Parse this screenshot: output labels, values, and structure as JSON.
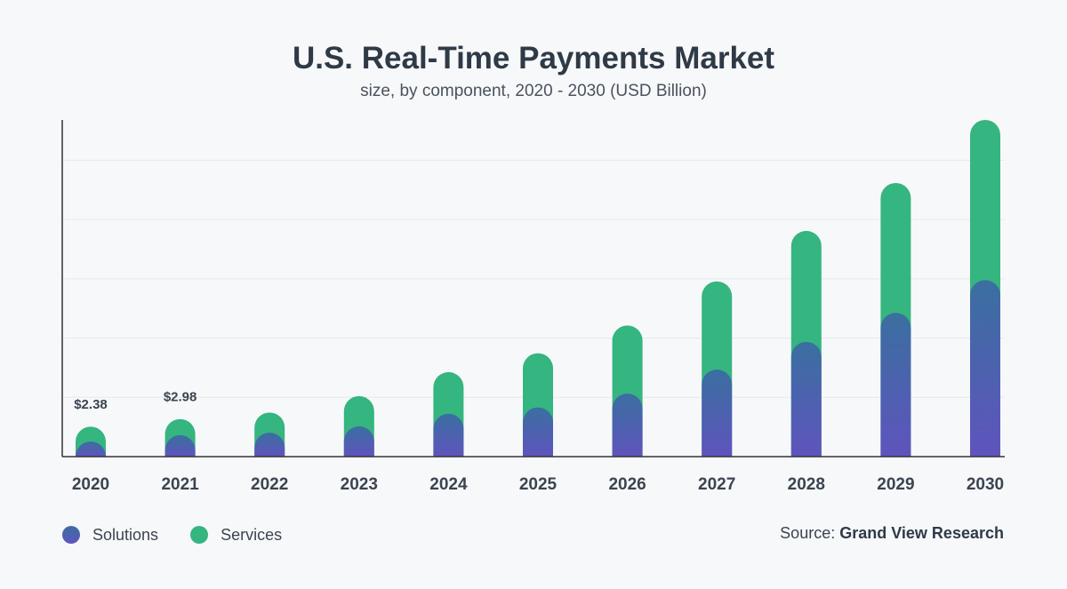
{
  "chart_data": {
    "type": "bar",
    "stacked": true,
    "title": "U.S. Real-Time Payments Market",
    "subtitle": "size, by component, 2020 - 2030 (USD Billion)",
    "categories": [
      "2020",
      "2021",
      "2022",
      "2023",
      "2024",
      "2025",
      "2026",
      "2027",
      "2028",
      "2029",
      "2030"
    ],
    "series": [
      {
        "name": "Solutions",
        "color": "#3a6fa0",
        "values": [
          1.2,
          1.7,
          1.9,
          2.4,
          3.4,
          3.9,
          5.0,
          6.9,
          9.1,
          11.4,
          14.0
        ]
      },
      {
        "name": "Services",
        "color": "#35b57f",
        "values": [
          1.18,
          1.28,
          1.6,
          2.4,
          3.3,
          4.3,
          5.4,
          7.0,
          8.8,
          10.3,
          12.7
        ]
      }
    ],
    "data_labels": [
      {
        "category": "2020",
        "text": "$2.38"
      },
      {
        "category": "2021",
        "text": "$2.98"
      }
    ],
    "ylim": [
      0,
      26.7
    ],
    "y_gridlines": [
      4.7,
      9.4,
      14.1,
      18.8,
      23.5
    ],
    "grid": true,
    "legend_position": "bottom-left"
  },
  "legend": {
    "solutions": "Solutions",
    "services": "Services"
  },
  "source": {
    "prefix": "Source:",
    "name": "Grand View Research"
  },
  "colors": {
    "solutions_top": "#3a6fa0",
    "solutions_bottom": "#5f54bd",
    "services": "#35b57f",
    "axis": "#333333",
    "grid": "#e6e8ec"
  }
}
